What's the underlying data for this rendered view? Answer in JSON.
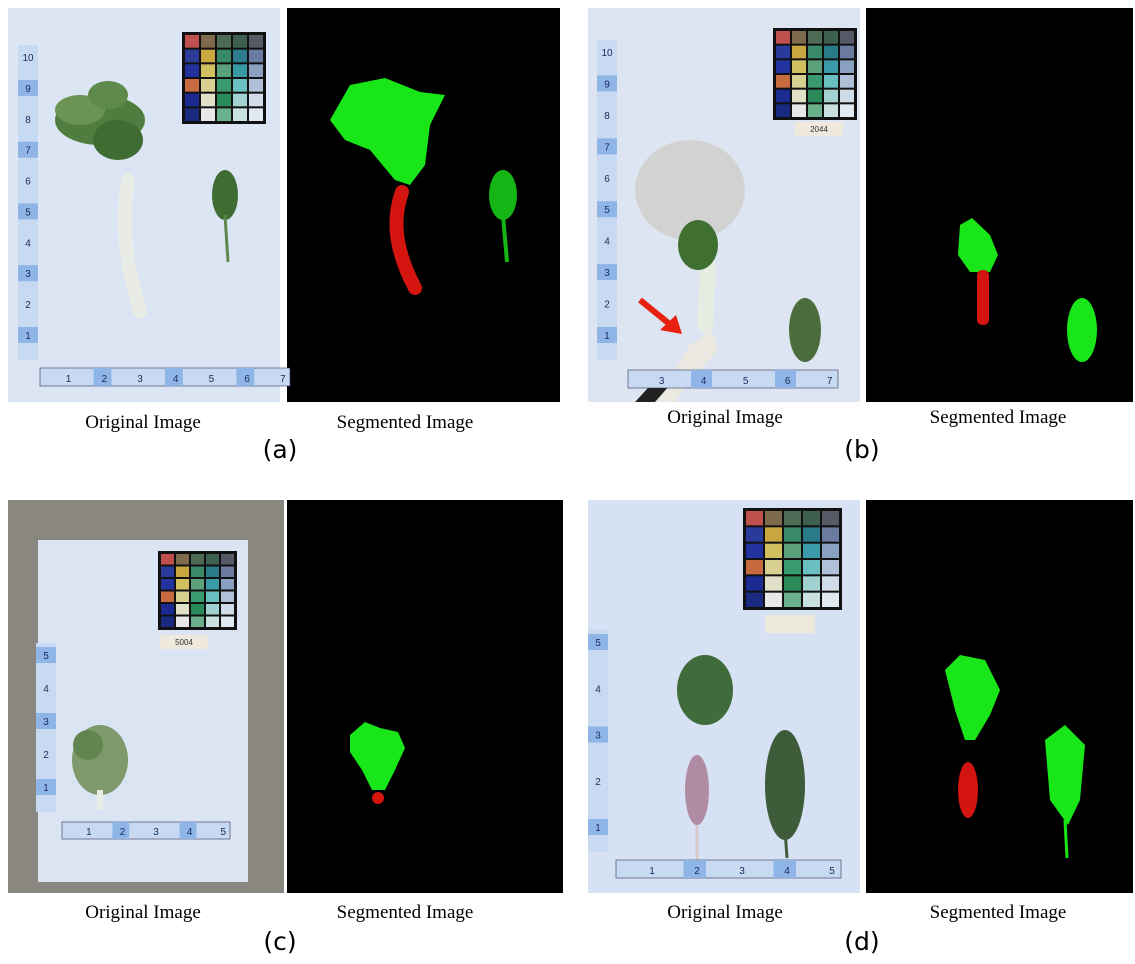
{
  "panels": [
    {
      "label": "(a)",
      "original_caption": "Original Image",
      "segmented_caption": "Segmented Image",
      "ruler_y": [
        1,
        2,
        3,
        4,
        5,
        6,
        7,
        8,
        9,
        10
      ],
      "ruler_x": [
        1,
        2,
        3,
        4,
        5,
        6,
        7
      ]
    },
    {
      "label": "(b)",
      "original_caption": "Original Image",
      "segmented_caption": "Segmented Image",
      "tag": "2044",
      "ruler_y": [
        1,
        2,
        3,
        4,
        5,
        6,
        7,
        8,
        9,
        10
      ],
      "ruler_x": [
        3,
        4,
        5,
        6,
        7
      ]
    },
    {
      "label": "(c)",
      "original_caption": "Original Image",
      "segmented_caption": "Segmented Image",
      "tag": "5004",
      "ruler_y": [
        1,
        2,
        3,
        4,
        5
      ],
      "ruler_x": [
        1,
        2,
        3,
        4,
        5
      ]
    },
    {
      "label": "(d)",
      "original_caption": "Original Image",
      "segmented_caption": "Segmented Image",
      "ruler_y": [
        1,
        2,
        3,
        4,
        5
      ],
      "ruler_x": [
        1,
        2,
        3,
        4,
        5
      ]
    }
  ]
}
